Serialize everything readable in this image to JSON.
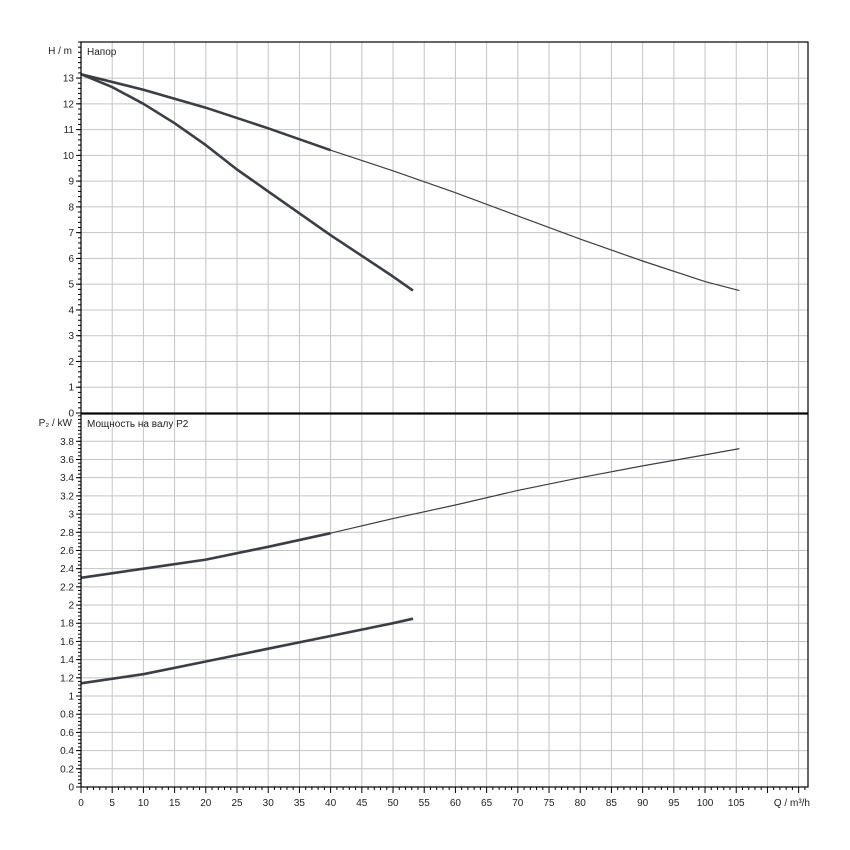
{
  "chart_data": [
    {
      "type": "line",
      "title": "Напор",
      "ylabel": "H / m",
      "xlabel": "Q / m³/h",
      "xlim": [
        0,
        116.5
      ],
      "ylim": [
        0,
        14.4
      ],
      "grid": true,
      "x_ticks": [
        0,
        5,
        10,
        15,
        20,
        25,
        30,
        35,
        40,
        45,
        50,
        55,
        60,
        65,
        70,
        75,
        80,
        85,
        90,
        95,
        100,
        105
      ],
      "y_ticks": [
        0,
        1,
        2,
        3,
        4,
        5,
        6,
        7,
        8,
        9,
        10,
        11,
        12,
        13
      ],
      "series": [
        {
          "x": [
            0,
            10,
            20,
            30,
            40,
            50,
            60,
            70,
            80,
            90,
            100,
            105.5
          ],
          "y": [
            13.15,
            12.55,
            11.85,
            11.05,
            10.2,
            9.4,
            8.55,
            7.65,
            6.75,
            5.9,
            5.1,
            4.75
          ],
          "color": "#3a3f47"
        },
        {
          "x": [
            0,
            5,
            10,
            15,
            20,
            25,
            30,
            35,
            40,
            45,
            50,
            53.2
          ],
          "y": [
            13.15,
            12.65,
            12.0,
            11.25,
            10.4,
            9.45,
            8.6,
            7.75,
            6.9,
            6.1,
            5.3,
            4.75
          ],
          "color": "#3a3f47"
        }
      ]
    },
    {
      "type": "line",
      "title": "Мощность на валу P2",
      "ylabel": "P₂ / kW",
      "xlabel": "Q / m³/h",
      "xlim": [
        0,
        116.5
      ],
      "ylim": [
        0,
        4.1
      ],
      "grid": true,
      "x_ticks": [
        0,
        5,
        10,
        15,
        20,
        25,
        30,
        35,
        40,
        45,
        50,
        55,
        60,
        65,
        70,
        75,
        80,
        85,
        90,
        95,
        100,
        105
      ],
      "y_ticks": [
        "0",
        "0.2",
        "0.4",
        "0.6",
        "0.8",
        "1",
        "1.2",
        "1.4",
        "1.6",
        "1.8",
        "2",
        "2.2",
        "2.4",
        "2.6",
        "2.8",
        "3",
        "3.2",
        "3.4",
        "3.6",
        "3.8"
      ],
      "series": [
        {
          "x": [
            0,
            10,
            20,
            30,
            40,
            50,
            60,
            70,
            80,
            90,
            100,
            105.5
          ],
          "y": [
            2.3,
            2.4,
            2.5,
            2.64,
            2.79,
            2.95,
            3.1,
            3.26,
            3.4,
            3.53,
            3.65,
            3.72
          ],
          "color": "#3a3f47"
        },
        {
          "x": [
            0,
            10,
            20,
            30,
            40,
            50,
            53.2
          ],
          "y": [
            1.14,
            1.24,
            1.38,
            1.52,
            1.66,
            1.8,
            1.85
          ],
          "color": "#3a3f47"
        }
      ]
    }
  ]
}
